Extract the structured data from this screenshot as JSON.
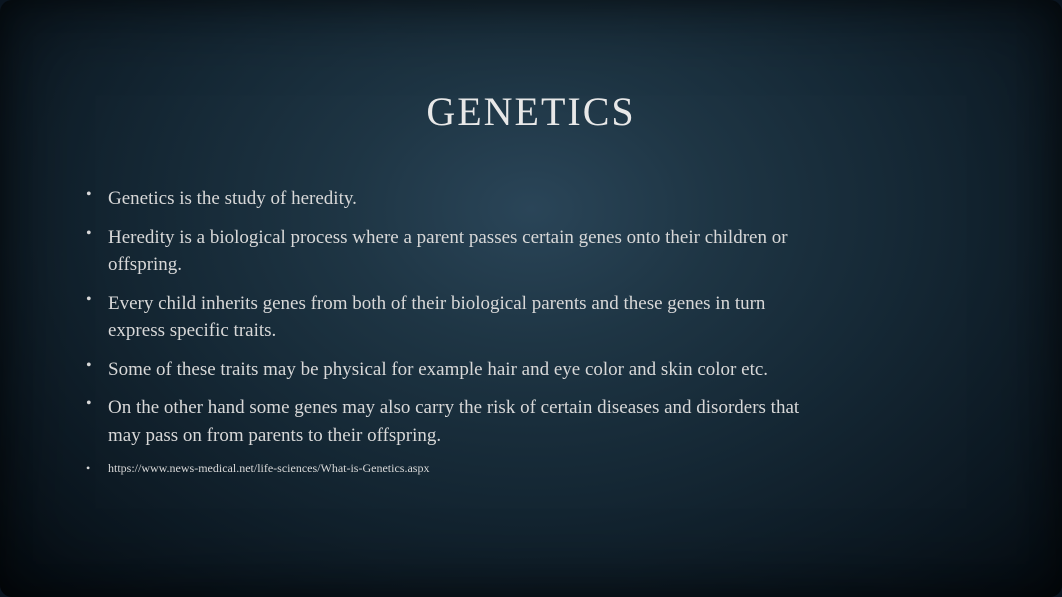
{
  "slide": {
    "title": "GENETICS",
    "title_fontsize": 40,
    "title_color": "#e8e8e8",
    "body_fontsize": 19,
    "body_color": "#d8d8d8",
    "citation_fontsize": 12,
    "background": {
      "type": "radial-gradient",
      "center_color": "#2a4558",
      "mid_color": "#1e3544",
      "outer_color": "#0d1a24",
      "edge_color": "#050c12"
    },
    "bullets": [
      "Genetics is the study of heredity.",
      "Heredity is a biological process where a parent passes certain genes onto their children or offspring.",
      "Every child inherits genes from both of their biological parents and these genes in turn express specific traits.",
      "Some of these traits may be physical for example hair and eye color and skin color etc.",
      "On the other hand some genes may also carry the risk of certain diseases and disorders that may pass on from parents to their offspring."
    ],
    "citation": "https://www.news-medical.net/life-sciences/What-is-Genetics.aspx"
  }
}
